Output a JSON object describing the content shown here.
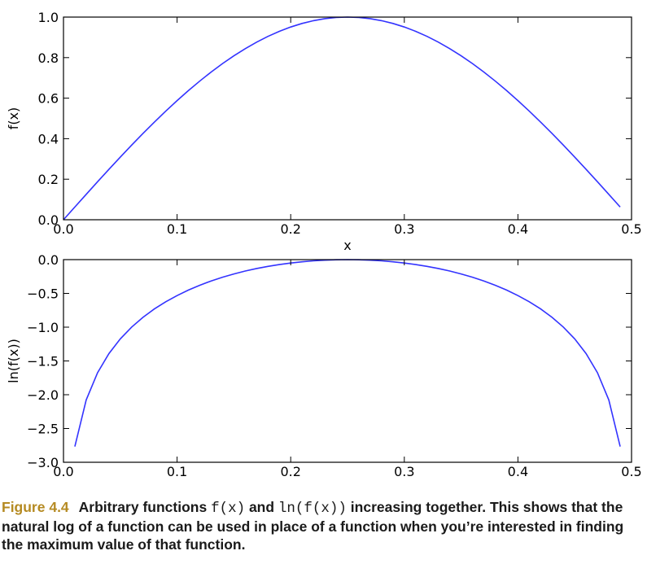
{
  "chart_data": [
    {
      "type": "line",
      "xlabel": "x",
      "ylabel": "f(x)",
      "xlim": [
        0,
        0.5
      ],
      "ylim": [
        0,
        1.0
      ],
      "xticks": [
        0.0,
        0.1,
        0.2,
        0.3,
        0.4,
        0.5
      ],
      "xtick_labels": [
        "0.0",
        "0.1",
        "0.2",
        "0.3",
        "0.4",
        "0.5"
      ],
      "yticks": [
        0.0,
        0.2,
        0.4,
        0.6,
        0.8,
        1.0
      ],
      "ytick_labels": [
        "0.0",
        "0.2",
        "0.4",
        "0.6",
        "0.8",
        "1.0"
      ],
      "grid": false,
      "line_color": "#3333ff",
      "x": [
        0.0,
        0.01,
        0.02,
        0.03,
        0.04,
        0.05,
        0.06,
        0.07,
        0.08,
        0.09,
        0.1,
        0.11,
        0.12,
        0.13,
        0.14,
        0.15,
        0.16,
        0.17,
        0.18,
        0.19,
        0.2,
        0.21,
        0.22,
        0.23,
        0.24,
        0.25,
        0.26,
        0.27,
        0.28,
        0.29,
        0.3,
        0.31,
        0.32,
        0.33,
        0.34,
        0.35,
        0.36,
        0.37,
        0.38,
        0.39,
        0.4,
        0.41,
        0.42,
        0.43,
        0.44,
        0.45,
        0.46,
        0.47,
        0.48,
        0.49
      ],
      "y": [
        0.0,
        0.0628,
        0.1253,
        0.1874,
        0.2487,
        0.309,
        0.3681,
        0.4258,
        0.4818,
        0.5358,
        0.5878,
        0.6374,
        0.6845,
        0.729,
        0.7705,
        0.809,
        0.8443,
        0.8763,
        0.9048,
        0.9298,
        0.9511,
        0.9686,
        0.9823,
        0.9921,
        0.998,
        1.0,
        0.998,
        0.9921,
        0.9823,
        0.9686,
        0.9511,
        0.9298,
        0.9048,
        0.8763,
        0.8443,
        0.809,
        0.7705,
        0.729,
        0.6845,
        0.6374,
        0.5878,
        0.5358,
        0.4818,
        0.4258,
        0.3681,
        0.309,
        0.2487,
        0.1874,
        0.1253,
        0.0628
      ]
    },
    {
      "type": "line",
      "ylabel": "ln(f(x))",
      "xlim": [
        0,
        0.5
      ],
      "ylim": [
        -3.0,
        0.0
      ],
      "xticks": [
        0.0,
        0.1,
        0.2,
        0.3,
        0.4,
        0.5
      ],
      "xtick_labels": [
        "0.0",
        "0.1",
        "0.2",
        "0.3",
        "0.4",
        "0.5"
      ],
      "yticks": [
        -3.0,
        -2.5,
        -2.0,
        -1.5,
        -1.0,
        -0.5,
        0.0
      ],
      "ytick_labels": [
        "−3.0",
        "−2.5",
        "−2.0",
        "−1.5",
        "−1.0",
        "−0.5",
        "0.0"
      ],
      "grid": false,
      "line_color": "#3333ff",
      "x": [
        0.01,
        0.02,
        0.03,
        0.04,
        0.05,
        0.06,
        0.07,
        0.08,
        0.09,
        0.1,
        0.11,
        0.12,
        0.13,
        0.14,
        0.15,
        0.16,
        0.17,
        0.18,
        0.19,
        0.2,
        0.21,
        0.22,
        0.23,
        0.24,
        0.25,
        0.26,
        0.27,
        0.28,
        0.29,
        0.3,
        0.31,
        0.32,
        0.33,
        0.34,
        0.35,
        0.36,
        0.37,
        0.38,
        0.39,
        0.4,
        0.41,
        0.42,
        0.43,
        0.44,
        0.45,
        0.46,
        0.47,
        0.48,
        0.49
      ],
      "y": [
        -2.768,
        -2.077,
        -1.674,
        -1.391,
        -1.174,
        -0.999,
        -0.854,
        -0.73,
        -0.624,
        -0.532,
        -0.45,
        -0.379,
        -0.316,
        -0.261,
        -0.212,
        -0.169,
        -0.132,
        -0.1,
        -0.073,
        -0.05,
        -0.032,
        -0.018,
        -0.008,
        -0.002,
        0.0,
        -0.002,
        -0.008,
        -0.018,
        -0.032,
        -0.05,
        -0.073,
        -0.1,
        -0.132,
        -0.169,
        -0.212,
        -0.261,
        -0.316,
        -0.379,
        -0.45,
        -0.532,
        -0.624,
        -0.73,
        -0.854,
        -0.999,
        -1.174,
        -1.391,
        -1.674,
        -2.077,
        -2.768
      ]
    }
  ],
  "caption": {
    "figure_label": "Figure 4.4",
    "text_1": "Arbitrary functions ",
    "code_1": "f(x)",
    "text_2": " and ",
    "code_2": "ln(f(x))",
    "text_3": " increasing together. This shows that the natural log of a function can be used in place of a function when you’re interested in finding the maximum value of that function."
  }
}
